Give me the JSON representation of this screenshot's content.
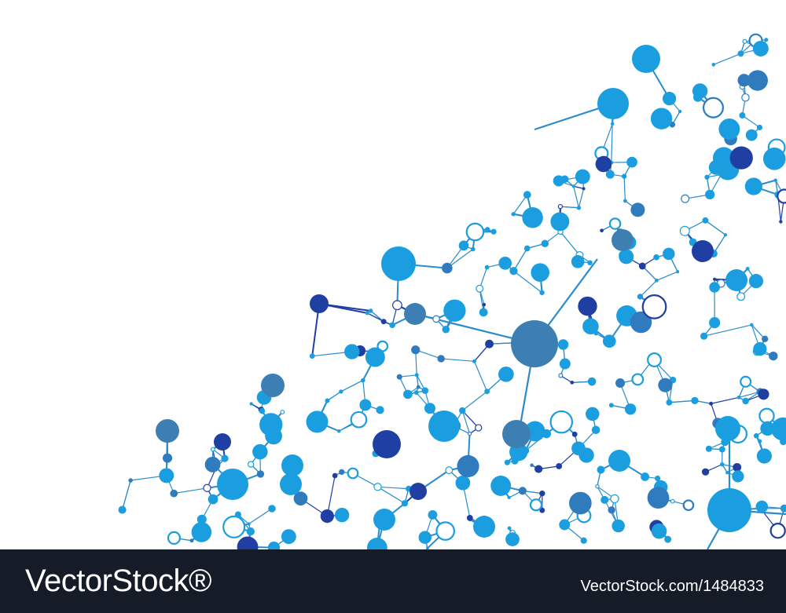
{
  "artwork": {
    "subject": "molecular-network-illustration",
    "palette": {
      "light": "#1a9ee0",
      "medium": "#2f7bbd",
      "dark": "#1f3fa3",
      "steel": "#3d7fb3",
      "line": "#2a8ccc",
      "footer_bg": "#151b27",
      "footer_text": "#ffffff"
    }
  },
  "footer": {
    "brand": "VectorStock®",
    "image_id": "VectorStock.com/1484833"
  }
}
